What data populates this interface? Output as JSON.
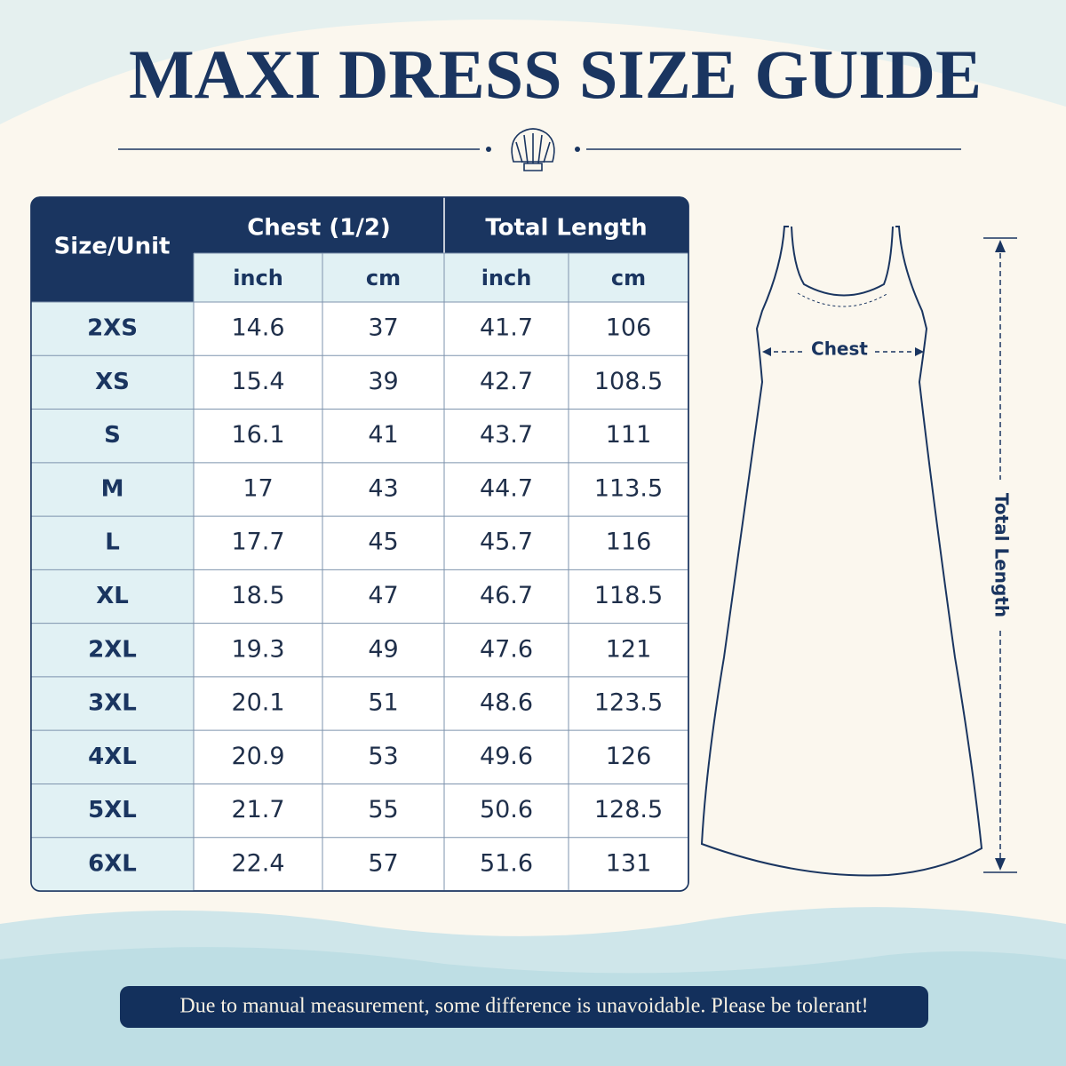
{
  "title": "MAXI DRESS SIZE GUIDE",
  "table": {
    "corner": "Size/Unit",
    "groups": [
      "Chest (1/2)",
      "Total Length"
    ],
    "units": [
      "inch",
      "cm",
      "inch",
      "cm"
    ],
    "rows": [
      [
        "2XS",
        "14.6",
        "37",
        "41.7",
        "106"
      ],
      [
        "XS",
        "15.4",
        "39",
        "42.7",
        "108.5"
      ],
      [
        "S",
        "16.1",
        "41",
        "43.7",
        "111"
      ],
      [
        "M",
        "17",
        "43",
        "44.7",
        "113.5"
      ],
      [
        "L",
        "17.7",
        "45",
        "45.7",
        "116"
      ],
      [
        "XL",
        "18.5",
        "47",
        "46.7",
        "118.5"
      ],
      [
        "2XL",
        "19.3",
        "49",
        "47.6",
        "121"
      ],
      [
        "3XL",
        "20.1",
        "51",
        "48.6",
        "123.5"
      ],
      [
        "4XL",
        "20.9",
        "53",
        "49.6",
        "126"
      ],
      [
        "5XL",
        "21.7",
        "55",
        "50.6",
        "128.5"
      ],
      [
        "6XL",
        "22.4",
        "57",
        "51.6",
        "131"
      ]
    ]
  },
  "diagram": {
    "chest": "Chest",
    "length": "Total Length"
  },
  "note": "Due to manual measurement, some difference is unavoidable. Please be tolerant!"
}
